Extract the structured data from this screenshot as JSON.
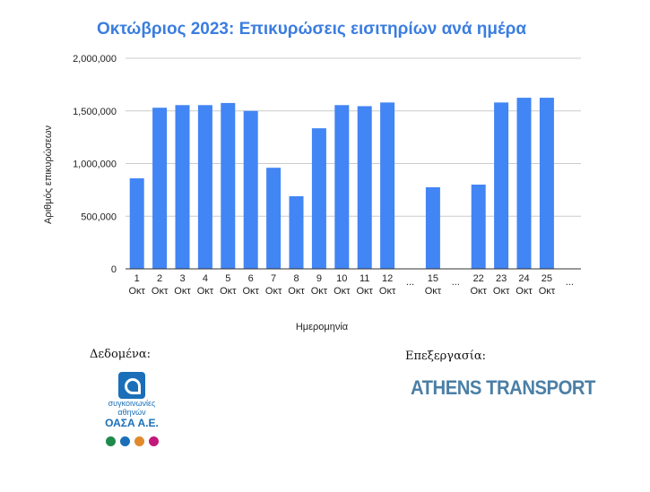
{
  "chart_data": {
    "type": "bar",
    "title": "Οκτώβριος 2023: Επικυρώσεις εισιτηρίων ανά ημέρα",
    "xlabel": "Ημερομηνία",
    "ylabel": "Αριθμός επικυρώσεων",
    "ylim": [
      0,
      2000000
    ],
    "yticks": [
      "0",
      "500,000",
      "1,000,000",
      "1,500,000",
      "2,000,000"
    ],
    "grid": true,
    "bar_color": "#4285f4",
    "categories": [
      {
        "day": "1",
        "month": "Οκτ",
        "value": 860000
      },
      {
        "day": "2",
        "month": "Οκτ",
        "value": 1530000
      },
      {
        "day": "3",
        "month": "Οκτ",
        "value": 1555000
      },
      {
        "day": "4",
        "month": "Οκτ",
        "value": 1555000
      },
      {
        "day": "5",
        "month": "Οκτ",
        "value": 1575000
      },
      {
        "day": "6",
        "month": "Οκτ",
        "value": 1500000
      },
      {
        "day": "7",
        "month": "Οκτ",
        "value": 960000
      },
      {
        "day": "8",
        "month": "Οκτ",
        "value": 690000
      },
      {
        "day": "9",
        "month": "Οκτ",
        "value": 1335000
      },
      {
        "day": "10",
        "month": "Οκτ",
        "value": 1555000
      },
      {
        "day": "11",
        "month": "Οκτ",
        "value": 1545000
      },
      {
        "day": "12",
        "month": "Οκτ",
        "value": 1580000
      },
      {
        "day": "...",
        "month": "",
        "value": null
      },
      {
        "day": "15",
        "month": "Οκτ",
        "value": 775000
      },
      {
        "day": "...",
        "month": "",
        "value": null
      },
      {
        "day": "22",
        "month": "Οκτ",
        "value": 800000
      },
      {
        "day": "23",
        "month": "Οκτ",
        "value": 1580000
      },
      {
        "day": "24",
        "month": "Οκτ",
        "value": 1625000
      },
      {
        "day": "25",
        "month": "Οκτ",
        "value": 1625000
      },
      {
        "day": "...",
        "month": "",
        "value": null
      }
    ]
  },
  "credits": {
    "data_label": "Δεδομένα:",
    "processing_label": "Επεξεργασία:",
    "oasa_line1": "συγκοινωνίες",
    "oasa_line2": "αθηνών",
    "oasa_line3": "ΟΑΣΑ Α.Ε.",
    "oasa_dot_colors": [
      "#1f8a4c",
      "#1a6fb8",
      "#e08a2c",
      "#c2187a"
    ],
    "athens_transport": "ATHENS TRANSPORT"
  }
}
